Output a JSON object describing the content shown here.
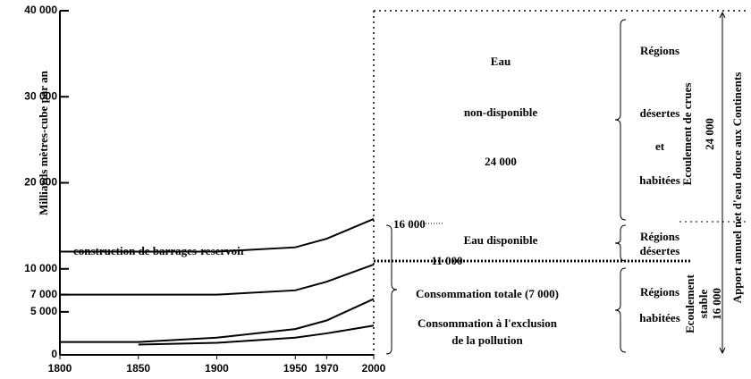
{
  "chart_data": {
    "type": "line",
    "y_label": "Milliards mètres-cube par an",
    "x": [
      1800,
      1850,
      1900,
      1950,
      1970,
      2000
    ],
    "xlim": [
      1800,
      2000
    ],
    "xticks": [
      1800,
      1850,
      1900,
      1950,
      1970,
      2000
    ],
    "ylim": [
      0,
      40000
    ],
    "yticks": [
      0,
      {
        "value": 5000,
        "label": "5 000"
      },
      {
        "value": 7000,
        "label": "7 000"
      },
      {
        "value": 10000,
        "label": "10 000"
      },
      {
        "value": 20000,
        "label": "20 000"
      },
      {
        "value": 30000,
        "label": "30 000"
      },
      {
        "value": 40000,
        "label": "40 000"
      }
    ],
    "series": [
      {
        "color": "#000000",
        "values": [
          12000,
          12000,
          12000,
          12500,
          13500,
          15800
        ]
      },
      {
        "color": "#000000",
        "values": [
          7000,
          7000,
          7000,
          7500,
          8500,
          10500
        ]
      },
      {
        "color": "#000000",
        "values": [
          1500,
          1500,
          2000,
          3000,
          4000,
          6500
        ]
      },
      {
        "color": "#000000",
        "values": [
          null,
          1200,
          1400,
          2000,
          2500,
          3400
        ]
      }
    ],
    "annotations": [
      "construction de barrages-reservoir",
      "Eau",
      "non-disponible",
      "24 000",
      "16 000",
      "Eau disponible",
      "11 000",
      "Consommation totale (7 000)",
      "Consommation à l'exclusion",
      "de la pollution",
      "Régions",
      "désertes",
      "et",
      "habitées",
      "Régions",
      "désertes",
      "Régions",
      "habitées",
      "Ecoulement de crues",
      "24 000",
      "Ecoulement",
      "stable",
      "16 000",
      "Apport annuel net d'eau douce aux Continents"
    ]
  }
}
